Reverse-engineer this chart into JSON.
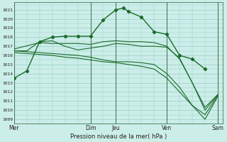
{
  "bg_color": "#cceee8",
  "grid_color": "#99cccc",
  "line_color": "#1a6b2a",
  "marker_color": "#1a6b2a",
  "xlabel_text": "Pression niveau de la mer( hPa )",
  "ylim": [
    1008.5,
    1021.8
  ],
  "yticks": [
    1009,
    1010,
    1011,
    1012,
    1013,
    1014,
    1015,
    1016,
    1017,
    1018,
    1019,
    1020,
    1021
  ],
  "xtick_labels": [
    "Mer",
    "Dim",
    "Jeu",
    "Ven",
    "Sam"
  ],
  "xtick_positions": [
    0,
    3,
    4,
    6,
    8
  ],
  "xlim": [
    0,
    8.2
  ],
  "vlines_x": [
    0,
    3,
    4,
    6,
    8
  ],
  "lines": [
    {
      "x": [
        0,
        0.5,
        1.0,
        1.5,
        2.0,
        2.5,
        3.0,
        3.5,
        4.0,
        4.3,
        4.5,
        5.0,
        5.5,
        6.0,
        6.5,
        7.0,
        7.5
      ],
      "y": [
        1013.5,
        1014.3,
        1017.5,
        1018.0,
        1018.1,
        1018.1,
        1018.1,
        1019.9,
        1021.0,
        1021.2,
        1020.8,
        1020.2,
        1018.6,
        1018.3,
        1016.0,
        1015.6,
        1014.5
      ],
      "marker": true,
      "lw": 1.0
    },
    {
      "x": [
        0,
        0.5,
        1.0,
        1.5,
        2.0,
        2.5,
        3.0,
        3.5,
        4.0,
        4.5,
        5.0,
        5.5,
        6.0,
        6.5,
        7.0,
        7.5,
        8.0
      ],
      "y": [
        1016.5,
        1016.5,
        1017.5,
        1017.6,
        1017.0,
        1016.6,
        1016.8,
        1017.0,
        1017.3,
        1017.2,
        1017.0,
        1017.0,
        1016.9,
        1015.7,
        1013.0,
        1010.0,
        1011.7
      ],
      "marker": false,
      "lw": 0.8
    },
    {
      "x": [
        0,
        0.5,
        1.0,
        1.5,
        2.0,
        2.5,
        3.0,
        3.5,
        4.0,
        4.5,
        5.0,
        5.5,
        6.0,
        6.5,
        7.0,
        7.5,
        8.0
      ],
      "y": [
        1016.5,
        1016.4,
        1016.3,
        1016.2,
        1016.1,
        1016.0,
        1015.8,
        1015.5,
        1015.3,
        1015.3,
        1015.2,
        1015.0,
        1014.0,
        1012.5,
        1010.5,
        1009.5,
        1011.6
      ],
      "marker": false,
      "lw": 0.8
    },
    {
      "x": [
        0,
        0.5,
        1.0,
        1.5,
        2.0,
        2.5,
        3.0,
        3.5,
        4.0,
        4.5,
        5.0,
        5.5,
        6.0,
        6.5,
        7.0,
        7.5,
        8.0
      ],
      "y": [
        1016.3,
        1016.2,
        1016.1,
        1016.0,
        1015.8,
        1015.7,
        1015.5,
        1015.3,
        1015.2,
        1015.0,
        1014.8,
        1014.5,
        1013.5,
        1012.0,
        1010.5,
        1009.0,
        1011.5
      ],
      "marker": false,
      "lw": 0.8
    },
    {
      "x": [
        0,
        1.0,
        1.5,
        2.0,
        2.5,
        3.0,
        3.5,
        4.0,
        4.5,
        5.0,
        5.5,
        6.0,
        6.5,
        7.0,
        7.5,
        8.0
      ],
      "y": [
        1016.7,
        1017.4,
        1017.3,
        1017.3,
        1017.3,
        1017.2,
        1017.5,
        1017.6,
        1017.5,
        1017.5,
        1017.4,
        1017.0,
        1015.6,
        1013.0,
        1010.3,
        1011.7
      ],
      "marker": false,
      "lw": 0.8
    }
  ]
}
